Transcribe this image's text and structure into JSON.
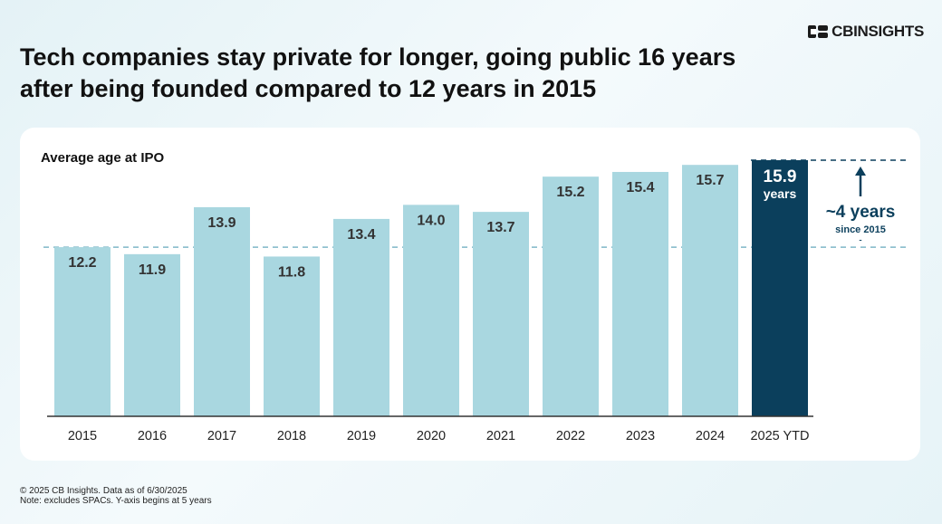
{
  "brand": {
    "name": "CBINSIGHTS",
    "icon": "cb-insights-logo-icon"
  },
  "title_line1": "Tech companies stay private for longer, going public 16 years",
  "title_line2": "after being founded compared to 12 years in 2015",
  "footer": {
    "line1": "© 2025 CB Insights. Data as of 6/30/2025",
    "line2": "Note: excludes SPACs. Y-axis begins at 5 years"
  },
  "colors": {
    "bar": "#a9d7e0",
    "highlight": "#0b3f5c",
    "reference_line": "#7fb8c8",
    "value_text": "#333333",
    "highlight_text": "#ffffff"
  },
  "chart_data": {
    "type": "bar",
    "title": "Average age at IPO",
    "categories": [
      "2015",
      "2016",
      "2017",
      "2018",
      "2019",
      "2020",
      "2021",
      "2022",
      "2023",
      "2024",
      "2025 YTD"
    ],
    "values": [
      12.2,
      11.9,
      13.9,
      11.8,
      13.4,
      14.0,
      13.7,
      15.2,
      15.4,
      15.7,
      15.9
    ],
    "value_labels": [
      "12.2",
      "11.9",
      "13.9",
      "11.8",
      "13.4",
      "14.0",
      "13.7",
      "15.2",
      "15.4",
      "15.7",
      "15.9"
    ],
    "highlight_index": 10,
    "highlight_unit": "years",
    "ylim": [
      5,
      15.9
    ],
    "xlabel": "",
    "ylabel": "",
    "reference_lines": [
      12.2,
      15.9
    ],
    "annotation": {
      "text": "~4 years",
      "subtext": "since 2015",
      "from": 12.2,
      "to": 15.9
    }
  }
}
